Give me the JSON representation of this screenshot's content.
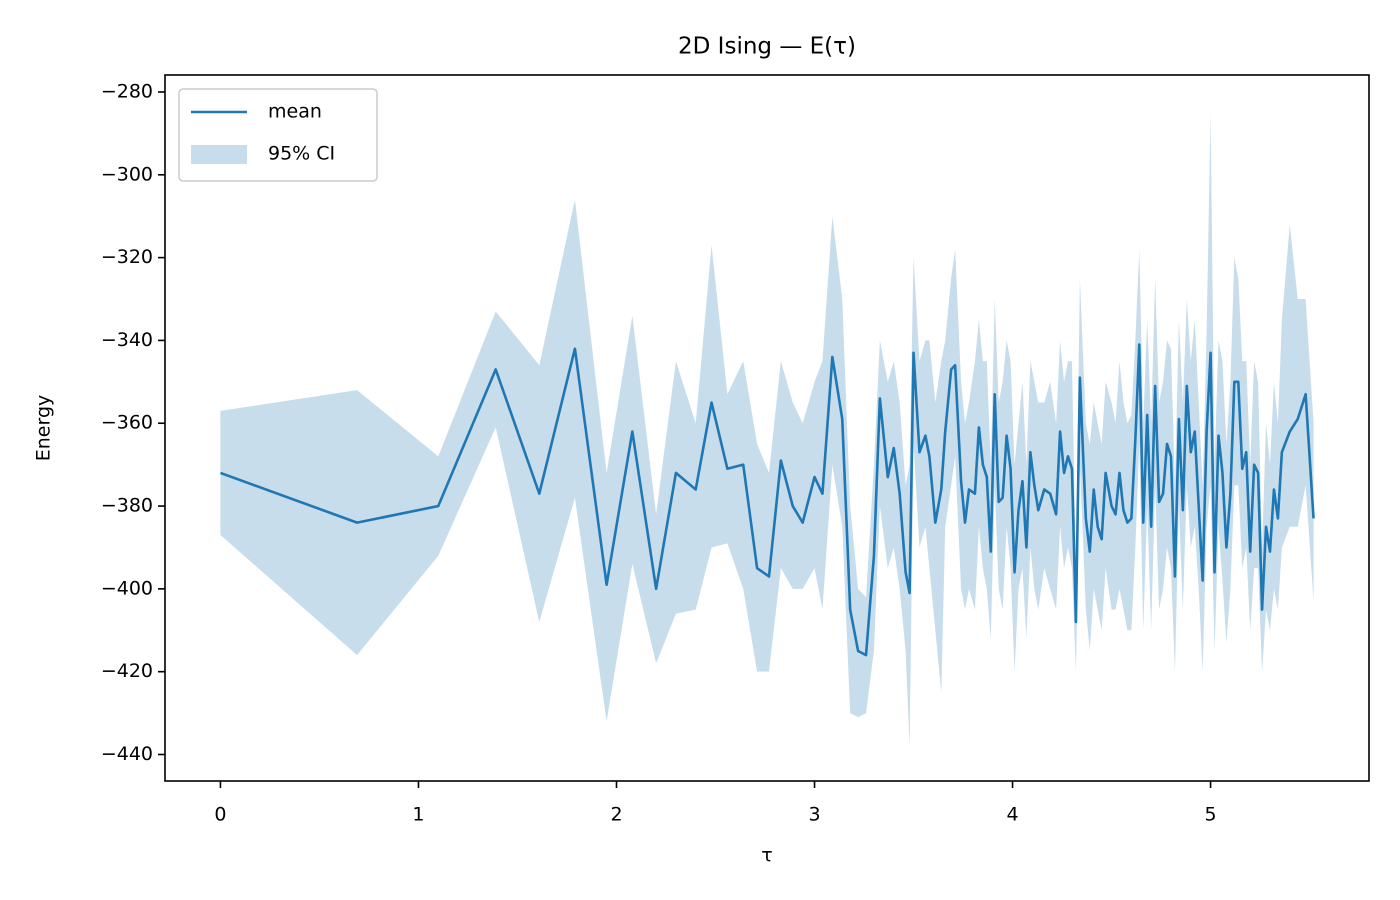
{
  "chart_data": {
    "type": "line",
    "title": "2D Ising — E(τ)",
    "xlabel": "τ",
    "ylabel": "Energy",
    "x": [
      0,
      0.69,
      1.1,
      1.39,
      1.61,
      1.79,
      1.95,
      2.08,
      2.2,
      2.3,
      2.4,
      2.48,
      2.56,
      2.64,
      2.71,
      2.77,
      2.83,
      2.89,
      2.94,
      3.0,
      3.04,
      3.09,
      3.14,
      3.18,
      3.22,
      3.26,
      3.3,
      3.33,
      3.37,
      3.4,
      3.43,
      3.46,
      3.48,
      3.5,
      3.53,
      3.56,
      3.58,
      3.61,
      3.64,
      3.66,
      3.69,
      3.71,
      3.74,
      3.76,
      3.78,
      3.81,
      3.83,
      3.85,
      3.87,
      3.89,
      3.91,
      3.93,
      3.95,
      3.97,
      3.99,
      4.01,
      4.03,
      4.05,
      4.07,
      4.09,
      4.11,
      4.13,
      4.16,
      4.19,
      4.22,
      4.24,
      4.26,
      4.28,
      4.3,
      4.32,
      4.34,
      4.37,
      4.39,
      4.41,
      4.43,
      4.45,
      4.47,
      4.5,
      4.52,
      4.54,
      4.56,
      4.58,
      4.6,
      4.62,
      4.64,
      4.66,
      4.68,
      4.7,
      4.72,
      4.74,
      4.76,
      4.78,
      4.8,
      4.82,
      4.84,
      4.86,
      4.88,
      4.9,
      4.92,
      4.94,
      4.96,
      4.98,
      5.0,
      5.02,
      5.04,
      5.06,
      5.08,
      5.1,
      5.12,
      5.14,
      5.16,
      5.18,
      5.2,
      5.22,
      5.24,
      5.26,
      5.28,
      5.3,
      5.32,
      5.34,
      5.36,
      5.4,
      5.44,
      5.48,
      5.52
    ],
    "series": [
      {
        "name": "mean",
        "color": "#1f77b4",
        "values": [
          -372,
          -384,
          -380,
          -347,
          -377,
          -342,
          -399,
          -362,
          -400,
          -372,
          -376,
          -355,
          -371,
          -370,
          -395,
          -397,
          -369,
          -380,
          -384,
          -373,
          -377,
          -344,
          -359,
          -405,
          -415,
          -416,
          -392,
          -354,
          -373,
          -366,
          -377,
          -396,
          -401,
          -343,
          -367,
          -363,
          -368,
          -384,
          -376,
          -362,
          -347,
          -346,
          -374,
          -384,
          -376,
          -377,
          -361,
          -370,
          -373,
          -391,
          -353,
          -379,
          -378,
          -363,
          -371,
          -396,
          -381,
          -374,
          -390,
          -367,
          -375,
          -381,
          -376,
          -377,
          -382,
          -362,
          -372,
          -368,
          -371,
          -408,
          -349,
          -383,
          -391,
          -376,
          -385,
          -388,
          -372,
          -380,
          -382,
          -372,
          -381,
          -384,
          -383,
          -364,
          -341,
          -384,
          -358,
          -385,
          -351,
          -379,
          -377,
          -365,
          -368,
          -397,
          -359,
          -381,
          -351,
          -367,
          -362,
          -380,
          -398,
          -362,
          -343,
          -396,
          -363,
          -372,
          -390,
          -377,
          -350,
          -350,
          -371,
          -367,
          -391,
          -370,
          -372,
          -405,
          -385,
          -391,
          -376,
          -383,
          -367,
          -362,
          -359,
          -353,
          -383
        ]
      }
    ],
    "ci": {
      "name": "95% CI",
      "color": "#1f77b4",
      "opacity": 0.25,
      "lower": [
        -387,
        -416,
        -392,
        -361,
        -408,
        -378,
        -432,
        -394,
        -418,
        -406,
        -405,
        -390,
        -389,
        -400,
        -420,
        -420,
        -395,
        -400,
        -400,
        -395,
        -405,
        -370,
        -385,
        -430,
        -431,
        -430,
        -415,
        -380,
        -395,
        -390,
        -400,
        -415,
        -438,
        -365,
        -390,
        -385,
        -395,
        -410,
        -425,
        -385,
        -375,
        -368,
        -400,
        -405,
        -400,
        -405,
        -385,
        -395,
        -400,
        -412,
        -375,
        -400,
        -405,
        -385,
        -395,
        -420,
        -400,
        -395,
        -412,
        -390,
        -400,
        -405,
        -395,
        -400,
        -405,
        -385,
        -395,
        -390,
        -395,
        -420,
        -370,
        -405,
        -415,
        -400,
        -405,
        -410,
        -395,
        -405,
        -405,
        -400,
        -405,
        -410,
        -410,
        -390,
        -365,
        -410,
        -380,
        -410,
        -375,
        -405,
        -400,
        -390,
        -395,
        -420,
        -380,
        -405,
        -375,
        -390,
        -385,
        -400,
        -420,
        -385,
        -375,
        -415,
        -385,
        -398,
        -413,
        -400,
        -375,
        -375,
        -395,
        -390,
        -410,
        -395,
        -395,
        -420,
        -405,
        -410,
        -400,
        -405,
        -390,
        -385,
        -385,
        -375,
        -403
      ],
      "upper": [
        -357,
        -352,
        -368,
        -333,
        -346,
        -306,
        -372,
        -334,
        -382,
        -345,
        -360,
        -317,
        -353,
        -345,
        -365,
        -372,
        -345,
        -355,
        -360,
        -350,
        -345,
        -310,
        -330,
        -380,
        -400,
        -402,
        -370,
        -340,
        -350,
        -345,
        -355,
        -375,
        -370,
        -320,
        -345,
        -340,
        -340,
        -355,
        -345,
        -340,
        -325,
        -318,
        -350,
        -360,
        -355,
        -345,
        -335,
        -345,
        -345,
        -370,
        -330,
        -355,
        -350,
        -340,
        -345,
        -370,
        -360,
        -350,
        -370,
        -345,
        -350,
        -355,
        -355,
        -350,
        -360,
        -340,
        -350,
        -345,
        -345,
        -395,
        -325,
        -360,
        -365,
        -355,
        -360,
        -365,
        -350,
        -355,
        -360,
        -345,
        -355,
        -360,
        -358,
        -340,
        -318,
        -360,
        -335,
        -360,
        -325,
        -355,
        -350,
        -340,
        -342,
        -375,
        -335,
        -355,
        -330,
        -345,
        -335,
        -355,
        -375,
        -338,
        -285,
        -370,
        -340,
        -345,
        -365,
        -350,
        -320,
        -325,
        -345,
        -345,
        -370,
        -345,
        -350,
        -390,
        -360,
        -370,
        -350,
        -360,
        -335,
        -312,
        -330,
        -330,
        -360
      ]
    },
    "xlim": [
      -0.28,
      5.8
    ],
    "ylim": [
      -446.4,
      -275.9
    ],
    "xticks": [
      0,
      1,
      2,
      3,
      4,
      5
    ],
    "yticks": [
      {
        "value": -440,
        "label": "−440"
      },
      {
        "value": -420,
        "label": "−420"
      },
      {
        "value": -400,
        "label": "−400"
      },
      {
        "value": -380,
        "label": "−380"
      },
      {
        "value": -360,
        "label": "−360"
      },
      {
        "value": -340,
        "label": "−340"
      },
      {
        "value": -320,
        "label": "−320"
      },
      {
        "value": -300,
        "label": "−300"
      },
      {
        "value": -280,
        "label": "−280"
      }
    ],
    "grid": false,
    "legend": "upper-left"
  }
}
